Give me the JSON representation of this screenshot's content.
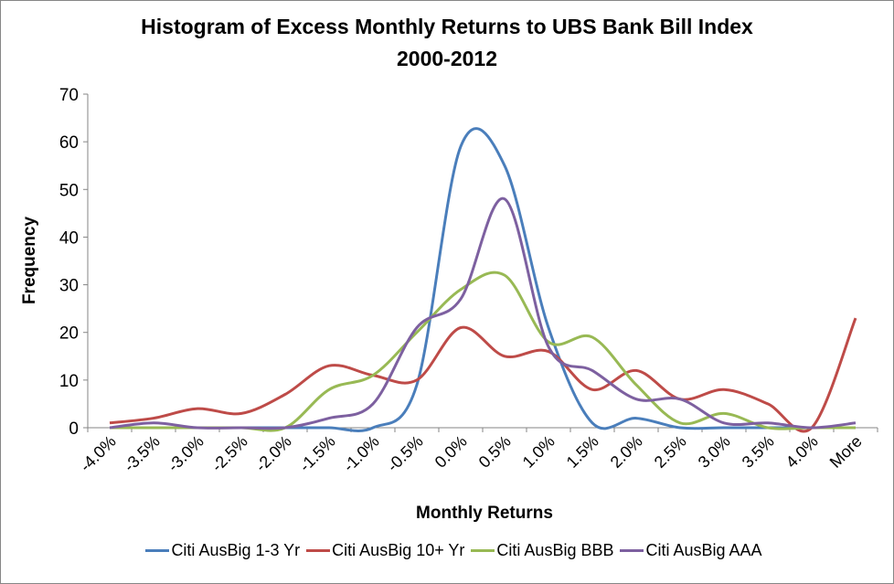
{
  "chart_data": {
    "type": "line",
    "smoothed": true,
    "title": "Histogram of Excess Monthly Returns to UBS Bank Bill Index",
    "subtitle": "2000-2012",
    "xlabel": "Monthly Returns",
    "ylabel": "Frequency",
    "ylim": [
      0,
      70
    ],
    "yticks": [
      0,
      10,
      20,
      30,
      40,
      50,
      60,
      70
    ],
    "grid": false,
    "legend_position": "bottom",
    "categories": [
      "-4.0%",
      "-3.5%",
      "-3.0%",
      "-2.5%",
      "-2.0%",
      "-1.5%",
      "-1.0%",
      "-0.5%",
      "0.0%",
      "0.5%",
      "1.0%",
      "1.5%",
      "2.0%",
      "2.5%",
      "3.0%",
      "3.5%",
      "4.0%",
      "More"
    ],
    "series": [
      {
        "name": "Citi AusBig 1-3 Yr",
        "color": "#4a7ebb",
        "values": [
          0,
          0,
          0,
          0,
          0,
          0,
          0,
          9,
          59,
          55,
          21,
          1,
          2,
          0,
          0,
          0,
          0,
          0
        ]
      },
      {
        "name": "Citi AusBig 10+ Yr",
        "color": "#be4b48",
        "values": [
          1,
          2,
          4,
          3,
          7,
          13,
          11,
          10,
          21,
          15,
          16,
          8,
          12,
          6,
          8,
          5,
          0,
          23
        ]
      },
      {
        "name": "Citi AusBig BBB",
        "color": "#98b954",
        "values": [
          0,
          0,
          0,
          0,
          0,
          8,
          11,
          20,
          29,
          32,
          18,
          19,
          9,
          1,
          3,
          0,
          0,
          0
        ]
      },
      {
        "name": "Citi AusBig AAA",
        "color": "#7d60a0",
        "values": [
          0,
          1,
          0,
          0,
          0,
          2,
          5,
          21,
          27,
          48,
          17,
          12,
          6,
          6,
          1,
          1,
          0,
          1
        ]
      }
    ]
  }
}
